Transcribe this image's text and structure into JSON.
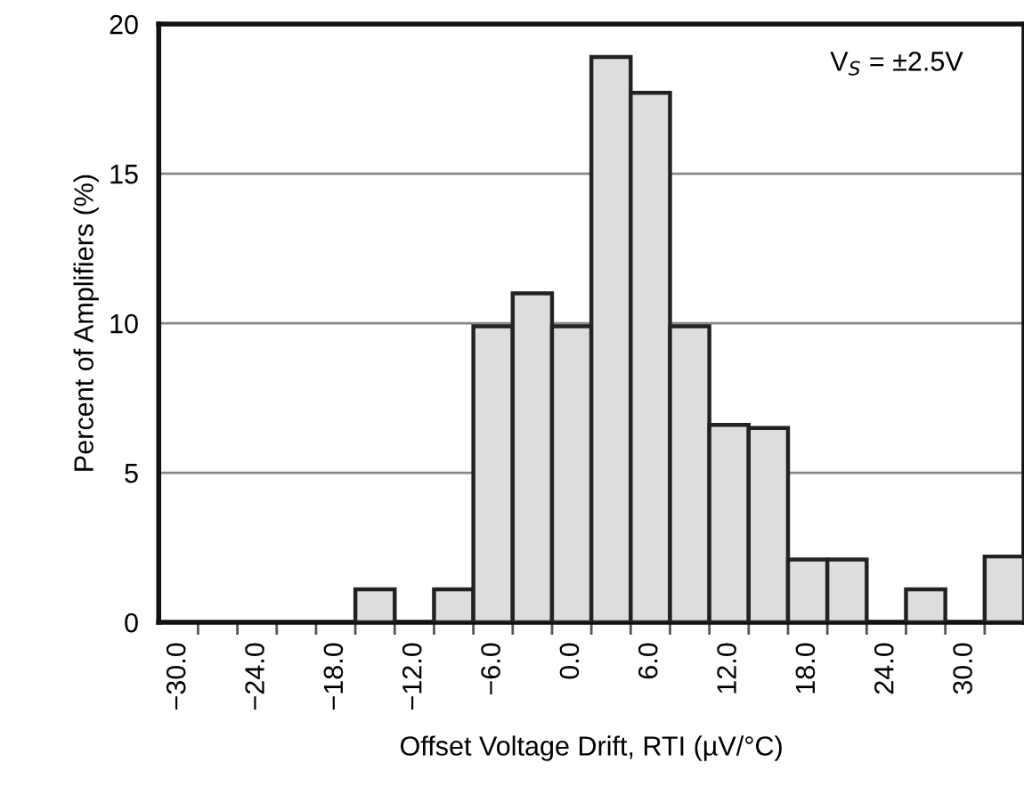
{
  "chart_data": {
    "type": "histogram",
    "xlabel": "Offset Voltage Drift, RTI (µV/°C)",
    "ylabel": "Percent of Amplifiers (%)",
    "annotations": [
      "V$_{S}$ = ±2.5V"
    ],
    "bins": [
      -31.5,
      -28.5,
      -25.5,
      -22.5,
      -19.5,
      -16.5,
      -13.5,
      -10.5,
      -7.5,
      -4.5,
      -1.5,
      1.5,
      4.5,
      7.5,
      10.5,
      13.5,
      16.5,
      19.5,
      22.5,
      25.5,
      28.5,
      31.5,
      34.5
    ],
    "values": [
      0,
      0,
      0,
      0,
      0,
      1.1,
      0,
      1.1,
      9.9,
      11.0,
      9.9,
      18.9,
      17.7,
      9.9,
      6.6,
      6.5,
      2.1,
      2.1,
      0,
      1.1,
      0,
      2.2
    ],
    "color": "#dcdddf",
    "xlim": [
      -31.5,
      34.5
    ],
    "xticks": [
      {
        "value": -30,
        "label": "−30.0"
      },
      {
        "value": -28.5,
        "label": null
      },
      {
        "value": -25.5,
        "label": null
      },
      {
        "value": -24,
        "label": "−24.0"
      },
      {
        "value": -22.5,
        "label": null
      },
      {
        "value": -19.5,
        "label": null
      },
      {
        "value": -18,
        "label": "−18.0"
      },
      {
        "value": -16.5,
        "label": null
      },
      {
        "value": -13.5,
        "label": null
      },
      {
        "value": -12,
        "label": "−12.0"
      },
      {
        "value": -10.5,
        "label": null
      },
      {
        "value": -7.5,
        "label": null
      },
      {
        "value": -6,
        "label": "−6.0"
      },
      {
        "value": -4.5,
        "label": null
      },
      {
        "value": -1.5,
        "label": null
      },
      {
        "value": 0,
        "label": "0.0"
      },
      {
        "value": 1.5,
        "label": null
      },
      {
        "value": 4.5,
        "label": null
      },
      {
        "value": 6,
        "label": "6.0"
      },
      {
        "value": 7.5,
        "label": null
      },
      {
        "value": 10.5,
        "label": null
      },
      {
        "value": 12,
        "label": "12.0"
      },
      {
        "value": 13.5,
        "label": null
      },
      {
        "value": 16.5,
        "label": null
      },
      {
        "value": 18,
        "label": "18.0"
      },
      {
        "value": 19.5,
        "label": null
      },
      {
        "value": 22.5,
        "label": null
      },
      {
        "value": 24,
        "label": "24.0"
      },
      {
        "value": 25.5,
        "label": null
      },
      {
        "value": 28.5,
        "label": null
      },
      {
        "value": 30,
        "label": "30.0"
      },
      {
        "value": 31.5,
        "label": null
      }
    ],
    "ylim": [
      0,
      20
    ],
    "yticks": [
      0,
      5,
      10,
      15,
      20
    ],
    "grid": "y"
  }
}
